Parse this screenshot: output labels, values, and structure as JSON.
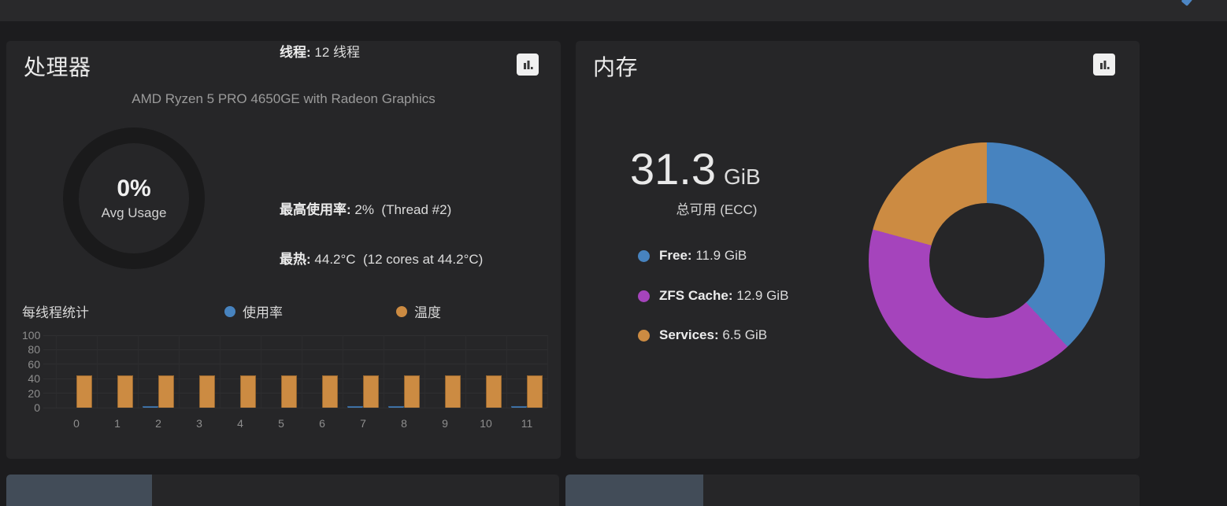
{
  "cpu_card": {
    "title": "处理器",
    "subtitle": "AMD Ryzen 5 PRO 4650GE with Radeon Graphics",
    "gauge": {
      "value": "0%",
      "label": "Avg Usage"
    },
    "stats": [
      {
        "label": "线程:",
        "value": "12 线程"
      },
      {
        "label": "最高使用率:",
        "value": "2%  (Thread #2)"
      },
      {
        "label": "最热:",
        "value": "44.2°C  (12 cores at 44.2°C)"
      }
    ],
    "thread_chart_title": "每线程统计"
  },
  "memory_card": {
    "title": "内存",
    "total_value": "31.3",
    "total_unit": "GiB",
    "total_caption": "总可用 (ECC)",
    "legend": [
      {
        "label": "Free:",
        "value": "11.9 GiB"
      },
      {
        "label": "ZFS Cache:",
        "value": "12.9 GiB"
      },
      {
        "label": "Services:",
        "value": "6.5 GiB"
      }
    ]
  },
  "chart_data": [
    {
      "type": "bar",
      "title": "每线程统计",
      "categories": [
        "0",
        "1",
        "2",
        "3",
        "4",
        "5",
        "6",
        "7",
        "8",
        "9",
        "10",
        "11"
      ],
      "series": [
        {
          "name": "使用率",
          "color": "#4783bf",
          "values": [
            0,
            0,
            2,
            0,
            0,
            0,
            0,
            1,
            1,
            0,
            0,
            1
          ]
        },
        {
          "name": "温度",
          "color": "#cc8b42",
          "values": [
            44.2,
            44.2,
            44.2,
            44.2,
            44.2,
            44.2,
            44.2,
            44.2,
            44.2,
            44.2,
            44.2,
            44.2
          ]
        }
      ],
      "xlabel": "",
      "ylabel": "",
      "ylim": [
        0,
        100
      ],
      "yticks": [
        0,
        20,
        40,
        60,
        80,
        100
      ],
      "grid": true,
      "legend_position": "top"
    },
    {
      "type": "pie",
      "donut": true,
      "title": "内存",
      "labels": [
        "Free",
        "ZFS Cache",
        "Services"
      ],
      "values": [
        11.9,
        12.9,
        6.5
      ],
      "unit": "GiB",
      "total": 31.3,
      "total_caption": "总可用 (ECC)",
      "colors": [
        "#4783bf",
        "#a544bc",
        "#cc8b42"
      ],
      "legend_position": "left"
    }
  ]
}
